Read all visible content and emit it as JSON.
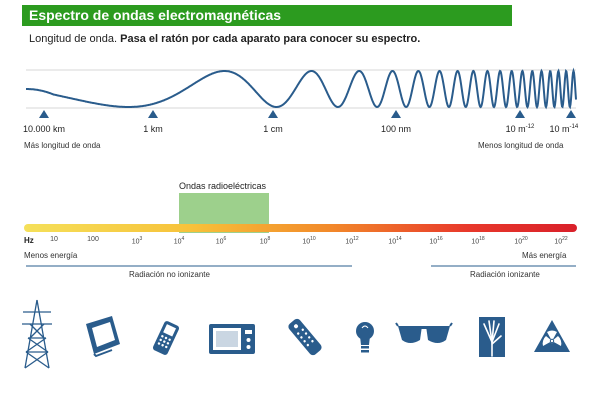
{
  "header": {
    "title": "Espectro de ondas electromagnéticas"
  },
  "subtitle": {
    "prefix": "Longitud de onda. ",
    "instruction": "Pasa el ratón por cada aparato para conocer su espectro."
  },
  "wavelengths": [
    {
      "base": "10.000 km",
      "exp": ""
    },
    {
      "base": "1 km",
      "exp": ""
    },
    {
      "base": "1 cm",
      "exp": ""
    },
    {
      "base": "100 nm",
      "exp": ""
    },
    {
      "base": "10 m",
      "exp": "-12"
    },
    {
      "base": "10 m",
      "exp": "-14"
    }
  ],
  "wave_labels": {
    "left": "Más longitud de onda",
    "right": "Menos longitud de onda"
  },
  "band": {
    "label": "Ondas radioeléctricas"
  },
  "frequency": {
    "unit": "Hz",
    "ticks": [
      {
        "base": "10",
        "exp": ""
      },
      {
        "base": "100",
        "exp": ""
      },
      {
        "base": "10",
        "exp": "3"
      },
      {
        "base": "10",
        "exp": "4"
      },
      {
        "base": "10",
        "exp": "6"
      },
      {
        "base": "10",
        "exp": "8"
      },
      {
        "base": "10",
        "exp": "10"
      },
      {
        "base": "10",
        "exp": "12"
      },
      {
        "base": "10",
        "exp": "14"
      },
      {
        "base": "10",
        "exp": "16"
      },
      {
        "base": "10",
        "exp": "18"
      },
      {
        "base": "10",
        "exp": "20"
      },
      {
        "base": "10",
        "exp": "22"
      }
    ]
  },
  "energy_labels": {
    "left": "Menos energía",
    "right": "Más energía"
  },
  "radiation_labels": {
    "non_ionizing": "Radiación no ionizante",
    "ionizing": "Radiación ionizante"
  },
  "devices": [
    {
      "name": "power-tower-icon"
    },
    {
      "name": "television-icon"
    },
    {
      "name": "mobile-phone-icon"
    },
    {
      "name": "microwave-icon"
    },
    {
      "name": "remote-control-icon"
    },
    {
      "name": "light-bulb-icon"
    },
    {
      "name": "sunglasses-icon"
    },
    {
      "name": "xray-icon"
    },
    {
      "name": "radiation-icon"
    }
  ],
  "colors": {
    "header": "#2c9b1f",
    "icons": "#2a5c8c",
    "band": "#8cc878",
    "wave": "#2a5c8c"
  }
}
